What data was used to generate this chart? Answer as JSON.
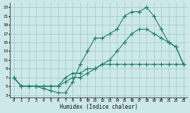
{
  "bg_color": "#cce8e8",
  "grid_color": "#aacccc",
  "line_color": "#1a7a6a",
  "xlabel": "Humidex (Indice chaleur)",
  "xlim": [
    -0.5,
    23.5
  ],
  "ylim": [
    2.5,
    24.0
  ],
  "xticks": [
    0,
    1,
    2,
    3,
    4,
    5,
    6,
    7,
    8,
    9,
    10,
    11,
    12,
    13,
    14,
    15,
    16,
    17,
    18,
    19,
    20,
    21,
    22,
    23
  ],
  "yticks": [
    3,
    5,
    7,
    9,
    11,
    13,
    15,
    17,
    19,
    21,
    23
  ],
  "line1_x": [
    0,
    1,
    2,
    3,
    4,
    5,
    6,
    7,
    8,
    9,
    10,
    11,
    12,
    13,
    14,
    15,
    16,
    17,
    18,
    19,
    20,
    21,
    22,
    23
  ],
  "line1_y": [
    7,
    5,
    5,
    5,
    5,
    5,
    5,
    7,
    8,
    8,
    9,
    9,
    10,
    10,
    10,
    10,
    10,
    10,
    10,
    10,
    10,
    10,
    10,
    10
  ],
  "line2_x": [
    0,
    1,
    2,
    3,
    4,
    5,
    6,
    7,
    8,
    9,
    10,
    11,
    12,
    13,
    14,
    15,
    16,
    17,
    18,
    19,
    20,
    21,
    22,
    23
  ],
  "line2_y": [
    7,
    5,
    5,
    5,
    4.5,
    4,
    3.5,
    3.5,
    6,
    10,
    13,
    16,
    16,
    17,
    18,
    21,
    22,
    22,
    23,
    21,
    18,
    15,
    14,
    10
  ],
  "line3_x": [
    0,
    1,
    2,
    3,
    4,
    5,
    6,
    7,
    8,
    9,
    10,
    11,
    12,
    13,
    14,
    15,
    16,
    17,
    18,
    19,
    20,
    21,
    22,
    23
  ],
  "line3_y": [
    7,
    5,
    5,
    5,
    5,
    5,
    5,
    6,
    7,
    7,
    8,
    9,
    10,
    11,
    13,
    15,
    17,
    18,
    18,
    17,
    16,
    15,
    14,
    10
  ]
}
